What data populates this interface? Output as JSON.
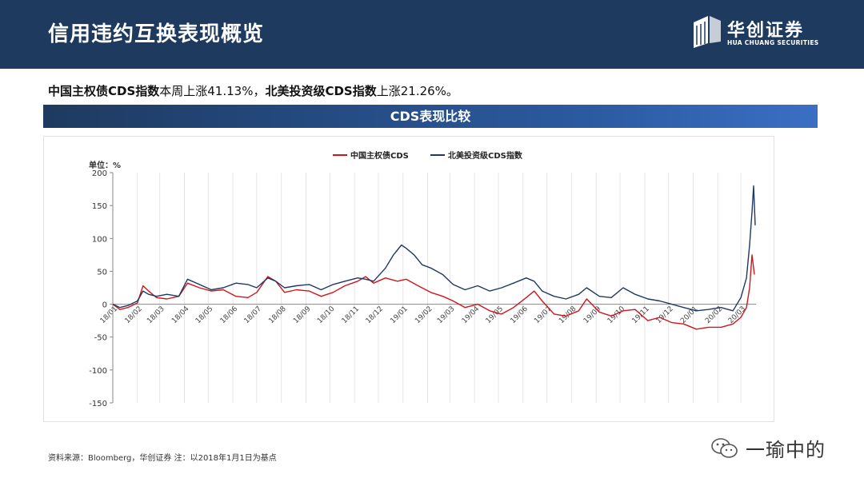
{
  "header": {
    "title": "信用违约互换表现概览",
    "logo_cn": "华创证券",
    "logo_en": "HUA CHUANG SECURITIES"
  },
  "summary": {
    "part1_bold": "中国主权债CDS指数",
    "part1_text": "本周上涨41.13%，",
    "part2_bold": "北美投资级CDS指数",
    "part2_text": "上涨21.26%。"
  },
  "section": {
    "title": "CDS表现比较"
  },
  "source": "资料来源：Bloomberg，华创证券   注：以2018年1月1日为基点",
  "watermark": {
    "text": "一瑜中的",
    "icon": "wechat-icon"
  },
  "chart_data": {
    "type": "line",
    "unit_label": "单位：%",
    "ylim": [
      -150,
      200
    ],
    "yticks": [
      200,
      150,
      100,
      50,
      0,
      -50,
      -100,
      -150
    ],
    "xticks": [
      "18/01",
      "18/02",
      "18/03",
      "18/04",
      "18/05",
      "18/06",
      "18/07",
      "18/08",
      "18/09",
      "18/10",
      "18/11",
      "18/12",
      "19/01",
      "19/02",
      "19/03",
      "19/04",
      "19/05",
      "19/06",
      "19/07",
      "19/08",
      "19/09",
      "19/10",
      "19/11",
      "19/12",
      "20/01",
      "20/02",
      "20/03"
    ],
    "x_start": "2018-01-01",
    "x_end": "2020-03-20",
    "legend_position": "top-center",
    "grid": "vertical",
    "series": [
      {
        "name": "中国主权债CDS",
        "color": "#d0161b",
        "points": [
          [
            "2018-01-01",
            0
          ],
          [
            "2018-01-10",
            -8
          ],
          [
            "2018-01-20",
            -5
          ],
          [
            "2018-02-01",
            2
          ],
          [
            "2018-02-08",
            28
          ],
          [
            "2018-02-15",
            20
          ],
          [
            "2018-02-25",
            10
          ],
          [
            "2018-03-10",
            8
          ],
          [
            "2018-03-25",
            12
          ],
          [
            "2018-04-05",
            32
          ],
          [
            "2018-04-20",
            25
          ],
          [
            "2018-05-05",
            20
          ],
          [
            "2018-05-20",
            22
          ],
          [
            "2018-06-05",
            12
          ],
          [
            "2018-06-20",
            10
          ],
          [
            "2018-07-01",
            18
          ],
          [
            "2018-07-15",
            42
          ],
          [
            "2018-07-25",
            35
          ],
          [
            "2018-08-05",
            18
          ],
          [
            "2018-08-20",
            22
          ],
          [
            "2018-09-05",
            20
          ],
          [
            "2018-09-20",
            12
          ],
          [
            "2018-10-05",
            18
          ],
          [
            "2018-10-20",
            28
          ],
          [
            "2018-11-05",
            35
          ],
          [
            "2018-11-15",
            42
          ],
          [
            "2018-11-25",
            32
          ],
          [
            "2018-12-10",
            40
          ],
          [
            "2018-12-25",
            35
          ],
          [
            "2019-01-05",
            38
          ],
          [
            "2019-01-20",
            28
          ],
          [
            "2019-02-05",
            18
          ],
          [
            "2019-02-20",
            12
          ],
          [
            "2019-03-05",
            5
          ],
          [
            "2019-03-20",
            -5
          ],
          [
            "2019-04-05",
            0
          ],
          [
            "2019-04-20",
            -10
          ],
          [
            "2019-05-05",
            -15
          ],
          [
            "2019-05-20",
            -5
          ],
          [
            "2019-06-05",
            10
          ],
          [
            "2019-06-15",
            20
          ],
          [
            "2019-06-25",
            5
          ],
          [
            "2019-07-10",
            -15
          ],
          [
            "2019-07-25",
            -18
          ],
          [
            "2019-08-10",
            -10
          ],
          [
            "2019-08-20",
            8
          ],
          [
            "2019-09-05",
            -12
          ],
          [
            "2019-09-20",
            -18
          ],
          [
            "2019-10-05",
            -10
          ],
          [
            "2019-10-20",
            -8
          ],
          [
            "2019-11-05",
            -25
          ],
          [
            "2019-11-20",
            -20
          ],
          [
            "2019-12-05",
            -28
          ],
          [
            "2019-12-20",
            -30
          ],
          [
            "2020-01-05",
            -38
          ],
          [
            "2020-01-20",
            -35
          ],
          [
            "2020-02-05",
            -35
          ],
          [
            "2020-02-20",
            -30
          ],
          [
            "2020-03-01",
            -20
          ],
          [
            "2020-03-08",
            -5
          ],
          [
            "2020-03-12",
            25
          ],
          [
            "2020-03-15",
            75
          ],
          [
            "2020-03-18",
            45
          ]
        ]
      },
      {
        "name": "北美投资级CDS指数",
        "color": "#1f3864",
        "points": [
          [
            "2018-01-01",
            0
          ],
          [
            "2018-01-10",
            -5
          ],
          [
            "2018-01-20",
            -2
          ],
          [
            "2018-02-01",
            5
          ],
          [
            "2018-02-08",
            20
          ],
          [
            "2018-02-15",
            15
          ],
          [
            "2018-02-25",
            12
          ],
          [
            "2018-03-10",
            15
          ],
          [
            "2018-03-25",
            12
          ],
          [
            "2018-04-05",
            38
          ],
          [
            "2018-04-20",
            30
          ],
          [
            "2018-05-05",
            22
          ],
          [
            "2018-05-20",
            25
          ],
          [
            "2018-06-05",
            32
          ],
          [
            "2018-06-20",
            30
          ],
          [
            "2018-07-01",
            25
          ],
          [
            "2018-07-15",
            40
          ],
          [
            "2018-07-25",
            35
          ],
          [
            "2018-08-05",
            25
          ],
          [
            "2018-08-20",
            28
          ],
          [
            "2018-09-05",
            30
          ],
          [
            "2018-09-20",
            22
          ],
          [
            "2018-10-05",
            30
          ],
          [
            "2018-10-20",
            35
          ],
          [
            "2018-11-05",
            40
          ],
          [
            "2018-11-15",
            38
          ],
          [
            "2018-11-25",
            35
          ],
          [
            "2018-12-10",
            55
          ],
          [
            "2018-12-20",
            75
          ],
          [
            "2018-12-30",
            90
          ],
          [
            "2019-01-05",
            85
          ],
          [
            "2019-01-15",
            75
          ],
          [
            "2019-01-25",
            60
          ],
          [
            "2019-02-05",
            55
          ],
          [
            "2019-02-20",
            45
          ],
          [
            "2019-03-05",
            30
          ],
          [
            "2019-03-20",
            22
          ],
          [
            "2019-04-05",
            28
          ],
          [
            "2019-04-20",
            20
          ],
          [
            "2019-05-05",
            25
          ],
          [
            "2019-05-20",
            32
          ],
          [
            "2019-06-05",
            40
          ],
          [
            "2019-06-15",
            35
          ],
          [
            "2019-06-25",
            20
          ],
          [
            "2019-07-10",
            12
          ],
          [
            "2019-07-25",
            8
          ],
          [
            "2019-08-10",
            15
          ],
          [
            "2019-08-20",
            25
          ],
          [
            "2019-09-05",
            12
          ],
          [
            "2019-09-20",
            10
          ],
          [
            "2019-10-05",
            25
          ],
          [
            "2019-10-20",
            15
          ],
          [
            "2019-11-05",
            8
          ],
          [
            "2019-11-20",
            5
          ],
          [
            "2019-12-05",
            0
          ],
          [
            "2019-12-20",
            -5
          ],
          [
            "2020-01-05",
            -10
          ],
          [
            "2020-01-20",
            -8
          ],
          [
            "2020-02-05",
            -5
          ],
          [
            "2020-02-20",
            -10
          ],
          [
            "2020-03-01",
            10
          ],
          [
            "2020-03-08",
            40
          ],
          [
            "2020-03-12",
            90
          ],
          [
            "2020-03-15",
            140
          ],
          [
            "2020-03-17",
            180
          ],
          [
            "2020-03-19",
            120
          ]
        ]
      }
    ]
  }
}
